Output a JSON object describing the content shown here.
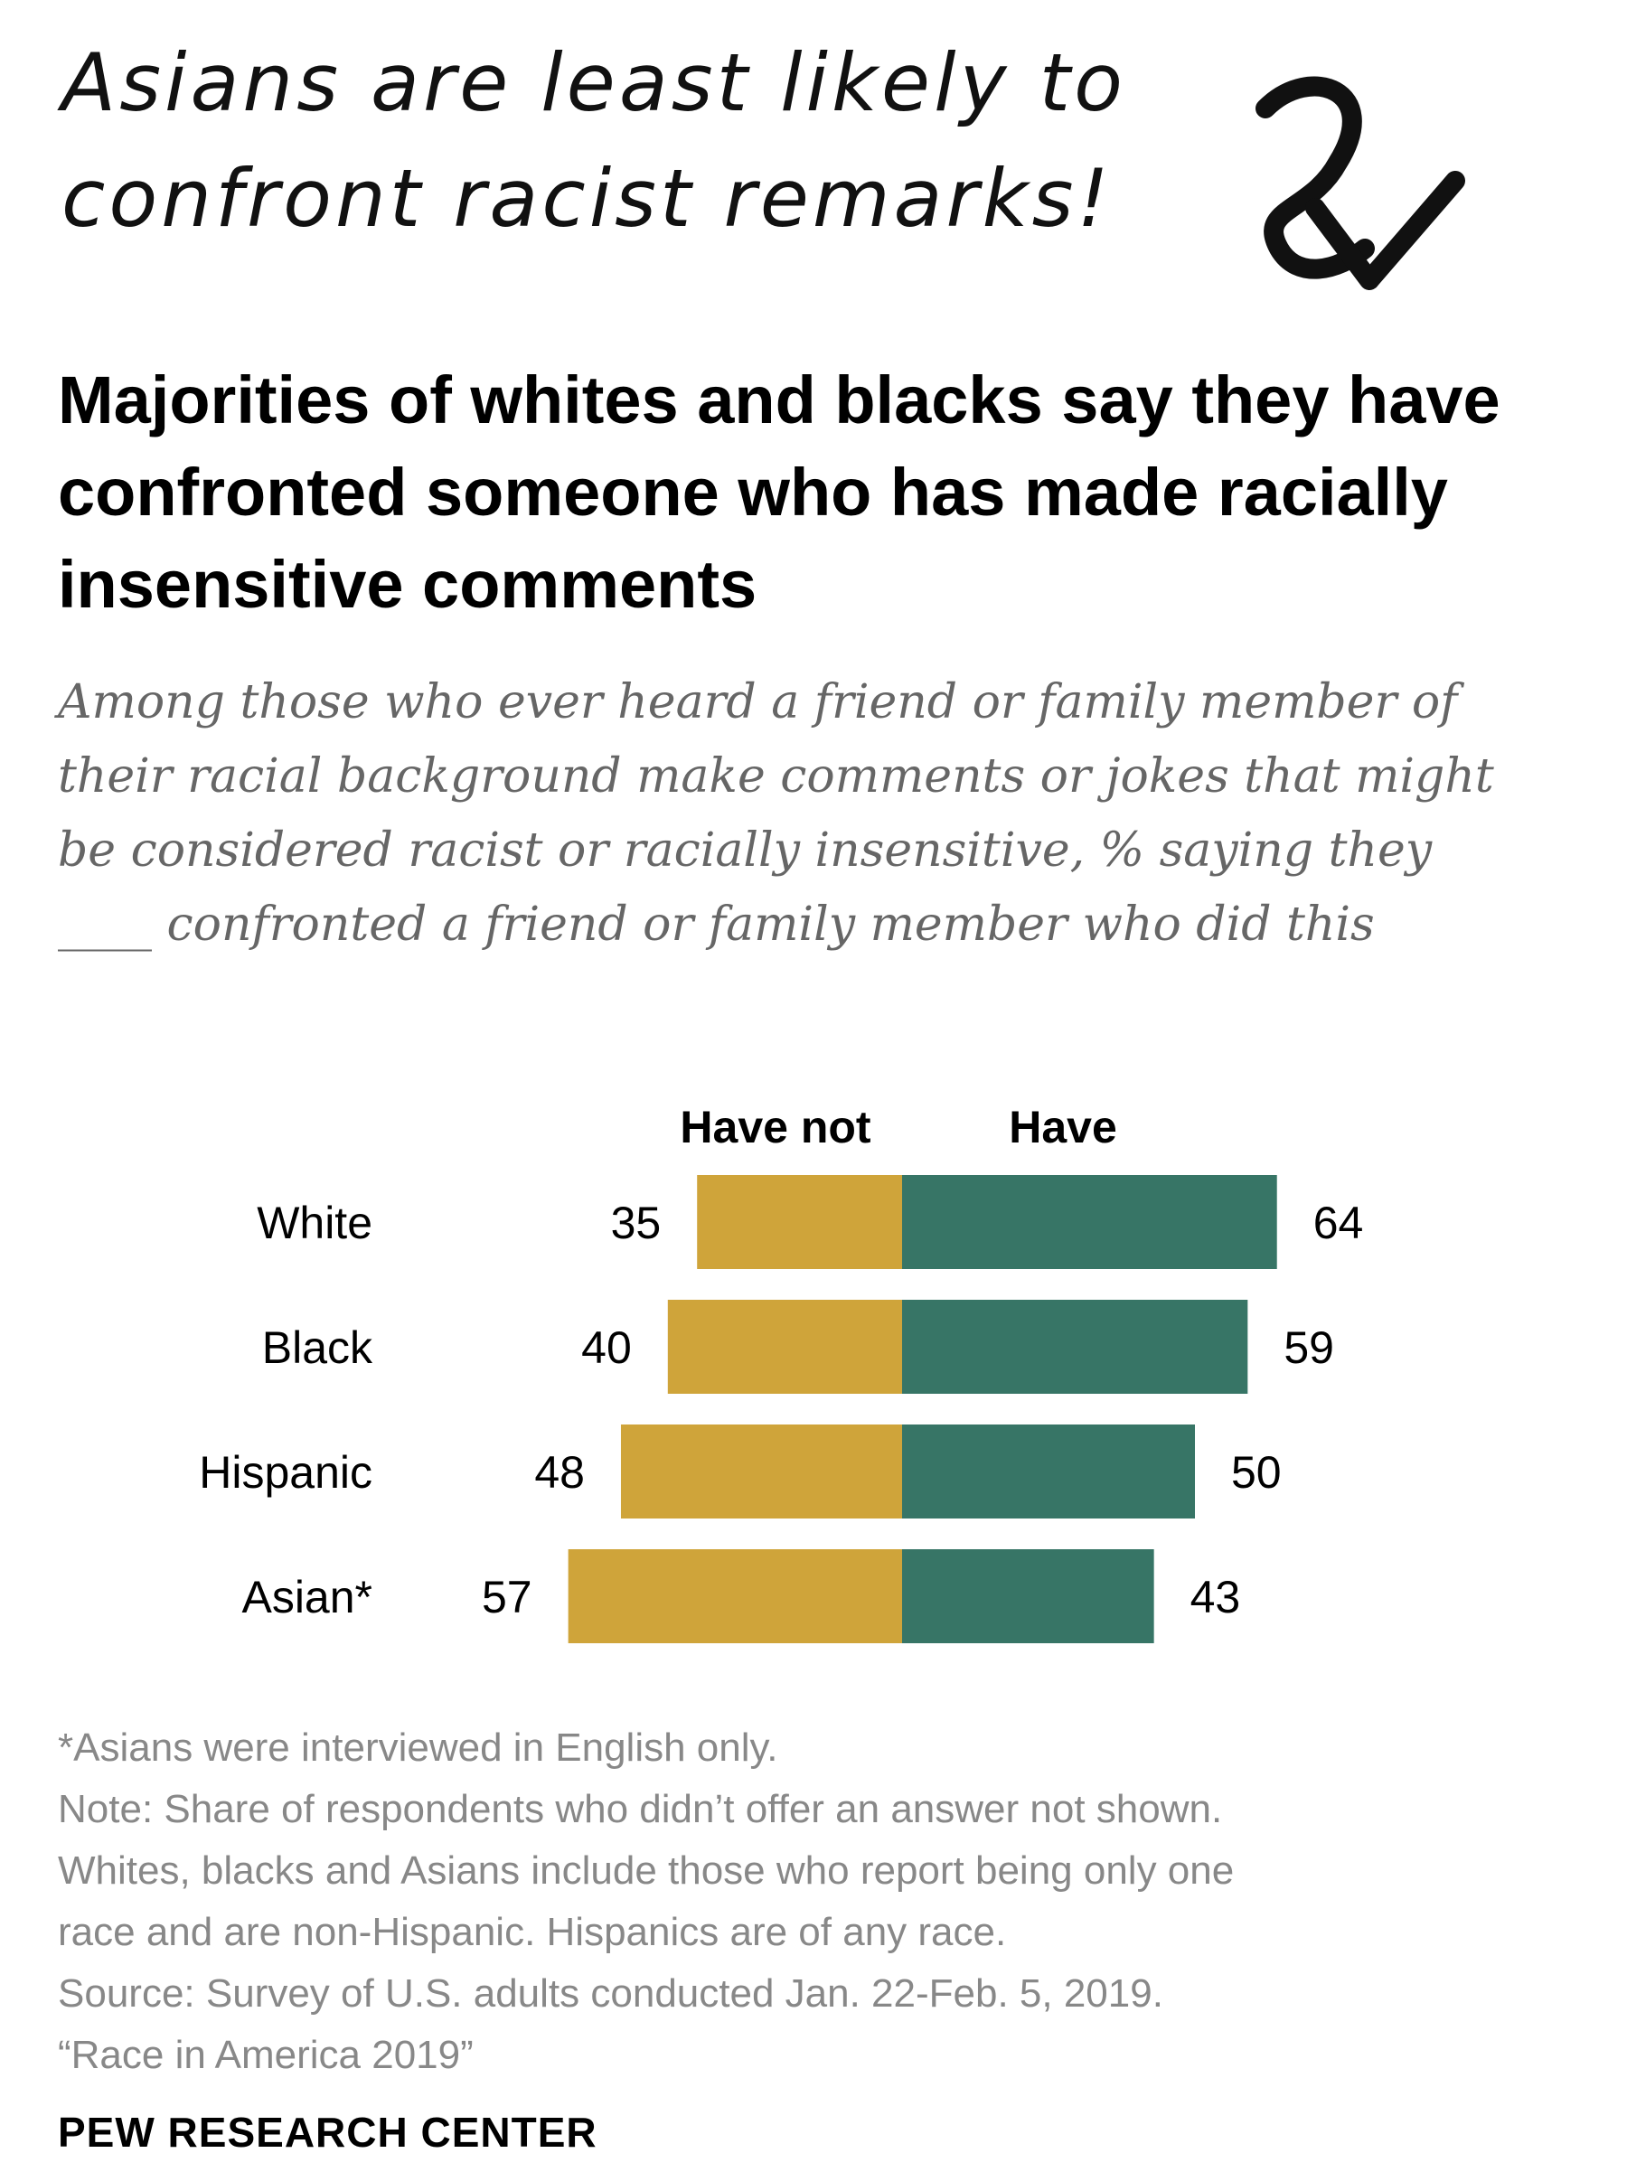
{
  "annotation": {
    "lines": [
      "Asians are least likely to",
      "confront racist remarks!"
    ]
  },
  "title": "Majorities of whites and blacks say they have confronted someone who has made racially insensitive comments",
  "subtitle": "Among those who ever heard a friend or family member of their racial background make comments or jokes that might be considered racist or racially insensitive, % saying they ____ confronted a friend or family member who did this",
  "chart_data": {
    "type": "bar",
    "orientation": "horizontal-diverging",
    "categories": [
      "White",
      "Black",
      "Hispanic",
      "Asian*"
    ],
    "series": [
      {
        "name": "Have not",
        "values": [
          35,
          40,
          48,
          57
        ],
        "color": "#cfa43a"
      },
      {
        "name": "Have",
        "values": [
          64,
          59,
          50,
          43
        ],
        "color": "#377566"
      }
    ]
  },
  "footnotes": [
    "*Asians were interviewed in English only.",
    "Note: Share of respondents who didn’t offer an answer not shown.",
    "Whites, blacks and Asians include those who report being only one",
    "race and are non-Hispanic. Hispanics are of any race.",
    "Source: Survey of U.S. adults conducted Jan. 22-Feb. 5, 2019.",
    "“Race in America 2019”"
  ],
  "brand": "PEW RESEARCH CENTER"
}
